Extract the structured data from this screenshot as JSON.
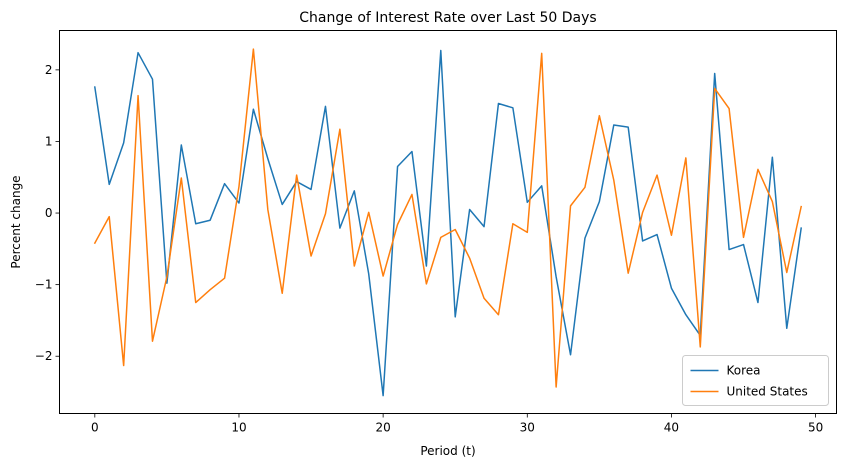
{
  "chart_data": {
    "type": "line",
    "title": "Change of Interest Rate over Last 50 Days",
    "xlabel": "Period (t)",
    "ylabel": "Percent change",
    "xlim": [
      -2.45,
      51.45
    ],
    "ylim": [
      -2.8,
      2.55
    ],
    "xticks": [
      0,
      10,
      20,
      30,
      40,
      50
    ],
    "yticks": [
      -2,
      -1,
      0,
      1,
      2
    ],
    "grid": false,
    "legend_position": "lower right",
    "x": [
      0,
      1,
      2,
      3,
      4,
      5,
      6,
      7,
      8,
      9,
      10,
      11,
      12,
      13,
      14,
      15,
      16,
      17,
      18,
      19,
      20,
      21,
      22,
      23,
      24,
      25,
      26,
      27,
      28,
      29,
      30,
      31,
      32,
      33,
      34,
      35,
      36,
      37,
      38,
      39,
      40,
      41,
      42,
      43,
      44,
      45,
      46,
      47,
      48,
      49
    ],
    "series": [
      {
        "name": "Korea",
        "color": "#1f77b4",
        "values": [
          1.76,
          0.4,
          0.98,
          2.24,
          1.87,
          -0.98,
          0.95,
          -0.15,
          -0.1,
          0.41,
          0.14,
          1.45,
          0.76,
          0.12,
          0.44,
          0.33,
          1.49,
          -0.21,
          0.31,
          -0.85,
          -2.55,
          0.65,
          0.86,
          -0.74,
          2.27,
          -1.45,
          0.05,
          -0.19,
          1.53,
          1.47,
          0.15,
          0.38,
          -0.89,
          -1.98,
          -0.35,
          0.16,
          1.23,
          1.2,
          -0.39,
          -0.3,
          -1.05,
          -1.42,
          -1.71,
          1.95,
          -0.51,
          -0.44,
          -1.25,
          0.78,
          -1.61,
          -0.21
        ]
      },
      {
        "name": "United States",
        "color": "#ff7f0e",
        "values": [
          -0.42,
          -0.05,
          -2.13,
          1.64,
          -1.79,
          -0.89,
          0.49,
          -1.25,
          -1.07,
          -0.91,
          0.37,
          2.29,
          0.05,
          -1.12,
          0.53,
          -0.6,
          -0.01,
          1.17,
          -0.74,
          0.01,
          -0.88,
          -0.16,
          0.26,
          -0.99,
          -0.34,
          -0.23,
          -0.63,
          -1.19,
          -1.42,
          -0.15,
          -0.27,
          2.23,
          -2.43,
          0.1,
          0.36,
          1.36,
          0.46,
          -0.84,
          0.01,
          0.53,
          -0.31,
          0.77,
          -1.87,
          1.74,
          1.46,
          -0.34,
          0.61,
          0.16,
          -0.83,
          0.09
        ]
      }
    ]
  }
}
